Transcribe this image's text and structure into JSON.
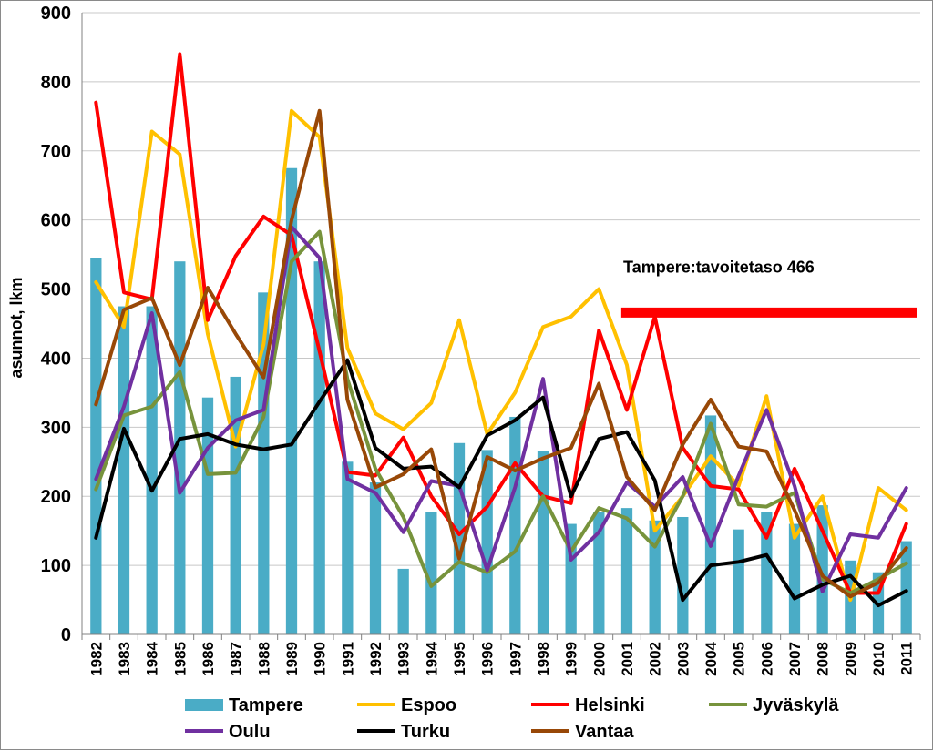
{
  "chart_data": {
    "type": "bar",
    "ylabel": "asunnot, lkm",
    "ylim": [
      0,
      900
    ],
    "yticks": [
      0,
      100,
      200,
      300,
      400,
      500,
      600,
      700,
      800,
      900
    ],
    "grid": true,
    "legend_position": "bottom",
    "categories": [
      "1982",
      "1983",
      "1984",
      "1985",
      "1986",
      "1987",
      "1988",
      "1989",
      "1990",
      "1991",
      "1992",
      "1993",
      "1994",
      "1995",
      "1996",
      "1997",
      "1998",
      "1999",
      "2000",
      "2001",
      "2002",
      "2003",
      "2004",
      "2005",
      "2006",
      "2007",
      "2008",
      "2009",
      "2010",
      "2011"
    ],
    "series": [
      {
        "name": "Tampere",
        "type": "bar",
        "color": "#4aacc6",
        "values": [
          545,
          475,
          475,
          540,
          343,
          373,
          495,
          675,
          540,
          250,
          220,
          95,
          177,
          277,
          267,
          315,
          265,
          160,
          177,
          183,
          165,
          170,
          317,
          152,
          177,
          160,
          187,
          107,
          90,
          135
        ]
      },
      {
        "name": "Espoo",
        "type": "line",
        "color": "#ffc000",
        "values": [
          510,
          445,
          728,
          695,
          435,
          272,
          420,
          758,
          720,
          415,
          320,
          297,
          335,
          455,
          290,
          350,
          445,
          460,
          500,
          390,
          150,
          200,
          258,
          215,
          345,
          140,
          200,
          50,
          212,
          180
        ]
      },
      {
        "name": "Helsinki",
        "type": "line",
        "color": "#ff0000",
        "values": [
          770,
          495,
          485,
          840,
          455,
          548,
          605,
          578,
          410,
          235,
          230,
          285,
          200,
          145,
          185,
          248,
          200,
          190,
          440,
          325,
          460,
          270,
          215,
          210,
          140,
          240,
          150,
          60,
          60,
          160
        ]
      },
      {
        "name": "Jyväskylä",
        "type": "line",
        "color": "#77933c",
        "values": [
          210,
          317,
          330,
          380,
          232,
          234,
          315,
          540,
          583,
          370,
          240,
          170,
          70,
          105,
          90,
          120,
          200,
          120,
          183,
          168,
          127,
          200,
          305,
          188,
          185,
          205,
          80,
          60,
          80,
          103
        ]
      },
      {
        "name": "Oulu",
        "type": "line",
        "color": "#7030a0",
        "values": [
          225,
          330,
          465,
          205,
          270,
          310,
          325,
          590,
          545,
          225,
          205,
          148,
          222,
          215,
          93,
          213,
          370,
          108,
          148,
          220,
          185,
          228,
          128,
          230,
          325,
          215,
          62,
          145,
          140,
          212
        ]
      },
      {
        "name": "Turku",
        "type": "line",
        "color": "#000000",
        "values": [
          140,
          298,
          208,
          283,
          290,
          275,
          268,
          275,
          337,
          397,
          270,
          240,
          243,
          213,
          288,
          310,
          343,
          200,
          283,
          293,
          223,
          50,
          100,
          105,
          115,
          52,
          72,
          85,
          42,
          63
        ]
      },
      {
        "name": "Vantaa",
        "type": "line",
        "color": "#984807",
        "values": [
          333,
          470,
          487,
          390,
          502,
          435,
          372,
          600,
          758,
          340,
          213,
          232,
          268,
          110,
          257,
          237,
          255,
          270,
          363,
          228,
          180,
          275,
          340,
          272,
          265,
          180,
          85,
          55,
          75,
          125
        ]
      }
    ],
    "annotations": [
      {
        "text": "Tampere:tavoitetaso 466",
        "value": 466,
        "from": "2001",
        "to": "2011",
        "color": "#ff0000"
      }
    ]
  }
}
